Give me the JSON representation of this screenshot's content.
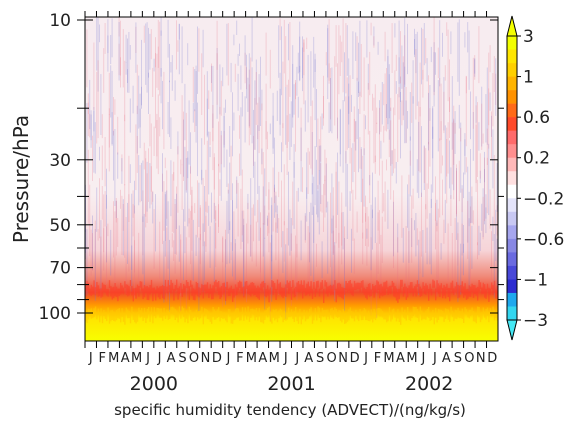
{
  "chart_data": {
    "type": "heatmap",
    "title": "",
    "xlabel": "specific humidity tendency (ADVECT)/(ng/kg/s)",
    "ylabel": "Pressure/hPa",
    "x_month_labels": [
      "J",
      "F",
      "M",
      "A",
      "M",
      "J",
      "J",
      "A",
      "S",
      "O",
      "N",
      "D"
    ],
    "years": [
      "2000",
      "2001",
      "2002"
    ],
    "y_scale": "log",
    "ylim": [
      120,
      10
    ],
    "y_ticks": [
      10,
      30,
      50,
      70,
      100
    ],
    "y_tick_labels": [
      "10",
      "30",
      "50",
      "70",
      "100"
    ],
    "colorbar_levels": [
      -3,
      -2,
      -1.5,
      -1,
      -0.8,
      -0.6,
      -0.4,
      -0.3,
      -0.2,
      -0.1,
      0,
      0.1,
      0.2,
      0.3,
      0.4,
      0.6,
      0.8,
      1,
      1.5,
      2,
      3
    ],
    "colorbar_labels": [
      "3",
      "1",
      "0.6",
      "0.2",
      "−0.2",
      "−0.6",
      "−1",
      "−3"
    ],
    "colorbar_colors": [
      "#f2ff00",
      "#ffe600",
      "#ffd000",
      "#ffb400",
      "#ff9200",
      "#ff6a18",
      "#ff4a2a",
      "#ff6b6b",
      "#ff8f8f",
      "#ffb8b8",
      "#ffe0e0",
      "#ffffff",
      "#e4e4fa",
      "#c8c8f2",
      "#a6a6ee",
      "#8888e4",
      "#6a6ae0",
      "#4848d8",
      "#2c2cd0",
      "#1ea8ee",
      "#33d6f0"
    ],
    "bands": [
      {
        "p_top": 10,
        "p_bottom": 60,
        "value": 0.1,
        "description": "near-zero with alternating positive/negative streaks"
      },
      {
        "p_top": 60,
        "p_bottom": 80,
        "value": 0.5,
        "description": "weak positive"
      },
      {
        "p_top": 80,
        "p_bottom": 95,
        "value": 1.2,
        "description": "strong positive"
      },
      {
        "p_top": 95,
        "p_bottom": 120,
        "value": 3,
        "description": "maximum positive"
      }
    ]
  }
}
